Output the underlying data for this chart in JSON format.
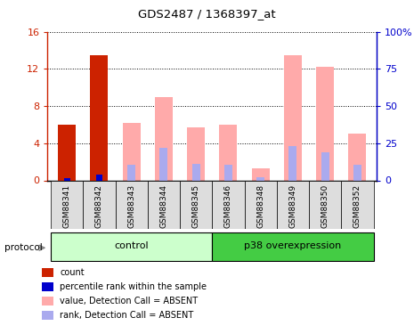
{
  "title": "GDS2487 / 1368397_at",
  "samples": [
    "GSM88341",
    "GSM88342",
    "GSM88343",
    "GSM88344",
    "GSM88345",
    "GSM88346",
    "GSM88348",
    "GSM88349",
    "GSM88350",
    "GSM88352"
  ],
  "count_vals": [
    6.0,
    13.5,
    0,
    0,
    0,
    0,
    0,
    0,
    0,
    0
  ],
  "percentile_vals": [
    1.5,
    3.7,
    0,
    0,
    0,
    0,
    0,
    0,
    0,
    0
  ],
  "pink_vals": [
    0,
    0,
    6.2,
    9.0,
    5.7,
    6.0,
    1.3,
    13.5,
    12.2,
    5.0
  ],
  "blue_rank_vals": [
    0,
    0,
    1.7,
    3.5,
    1.8,
    1.7,
    0.3,
    3.7,
    3.0,
    1.7
  ],
  "left_ylim": [
    0,
    16
  ],
  "right_ylim": [
    0,
    100
  ],
  "left_yticks": [
    0,
    4,
    8,
    12,
    16
  ],
  "right_yticks": [
    0,
    25,
    50,
    75,
    100
  ],
  "right_yticklabels": [
    "0",
    "25",
    "50",
    "75",
    "100%"
  ],
  "bar_width": 0.55,
  "color_count": "#cc2200",
  "color_percentile": "#0000cc",
  "color_pink": "#ffaaaa",
  "color_blue_rank": "#aaaaee",
  "color_tick_left": "#cc2200",
  "color_tick_right": "#0000cc",
  "group_ctrl_color": "#ccffcc",
  "group_p38_color": "#44cc44",
  "sample_box_color": "#dddddd",
  "protocol_label": "protocol"
}
